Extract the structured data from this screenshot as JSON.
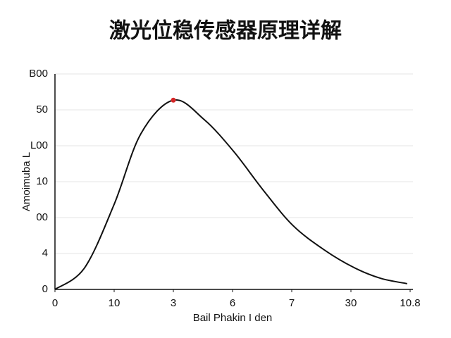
{
  "chart_data": {
    "type": "line",
    "title": "激光位稳传感器原理详解",
    "x_label": "Bail Phakin I den",
    "y_label": "Amoimuba L",
    "x": [
      0,
      0.5,
      1,
      1.45,
      2,
      2.52,
      3.02,
      3.52,
      4.02,
      4.55,
      5.05,
      5.5,
      5.95
    ],
    "series": [
      {
        "color": "#111111",
        "values": [
          0,
          0.6,
          2.37,
          4.33,
          5.27,
          4.73,
          3.84,
          2.76,
          1.78,
          1.1,
          0.61,
          0.31,
          0.16
        ]
      }
    ],
    "highlight": {
      "x": 2,
      "y": 5.27,
      "color": "#d62728"
    },
    "xlim": [
      0,
      6
    ],
    "ylim": [
      0,
      6
    ],
    "xticks": [
      0,
      {
        "value": 1,
        "label": "10"
      },
      {
        "value": 2,
        "label": "3"
      },
      {
        "value": 3,
        "label": "6"
      },
      {
        "value": 4,
        "label": "7"
      },
      {
        "value": 5,
        "label": "30"
      },
      {
        "value": 6,
        "label": "10.8"
      }
    ],
    "yticks": [
      0,
      {
        "value": 1,
        "label": "4"
      },
      {
        "value": 2,
        "label": "00"
      },
      {
        "value": 3,
        "label": "10"
      },
      {
        "value": 4,
        "label": "L00"
      },
      {
        "value": 5,
        "label": "50"
      },
      {
        "value": 6,
        "label": "B00"
      }
    ],
    "grid": true
  }
}
